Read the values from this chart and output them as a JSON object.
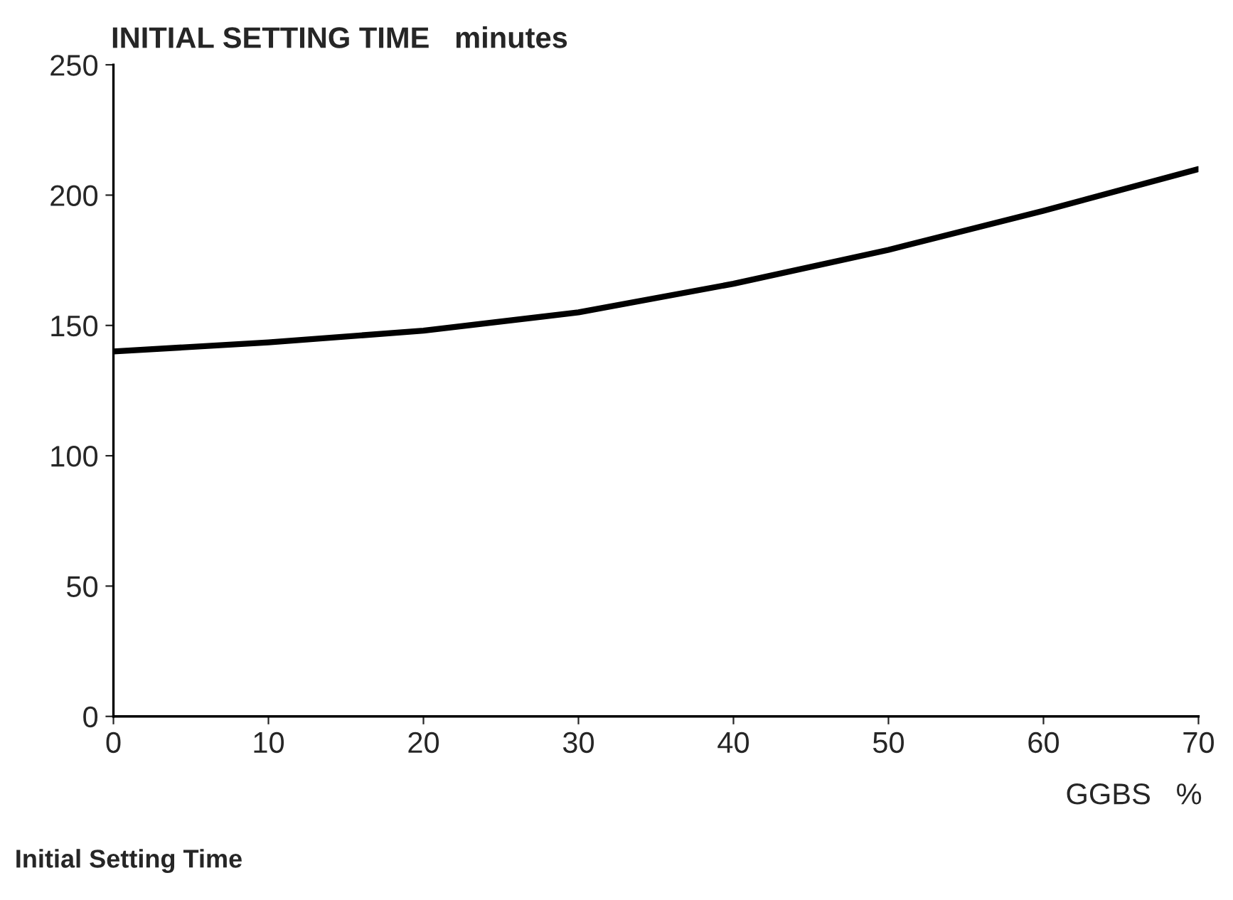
{
  "chart_data": {
    "type": "line",
    "title": "INITIAL SETTING TIME   minutes",
    "xlabel": "GGBS   %",
    "annotations": [
      "Initial Setting Time"
    ],
    "x": [
      0,
      10,
      20,
      30,
      40,
      50,
      60,
      70
    ],
    "series": [
      {
        "color": "#000000",
        "values": [
          140,
          143.5,
          148,
          155,
          166,
          179,
          194,
          210
        ]
      }
    ],
    "xlim": [
      0,
      70
    ],
    "xticks": [
      0,
      10,
      20,
      30,
      40,
      50,
      60,
      70
    ],
    "ylim": [
      0,
      250
    ],
    "yticks": [
      0,
      50,
      100,
      150,
      200,
      250
    ],
    "grid": false,
    "legend": false,
    "marker": "none",
    "line_style": "solid"
  }
}
